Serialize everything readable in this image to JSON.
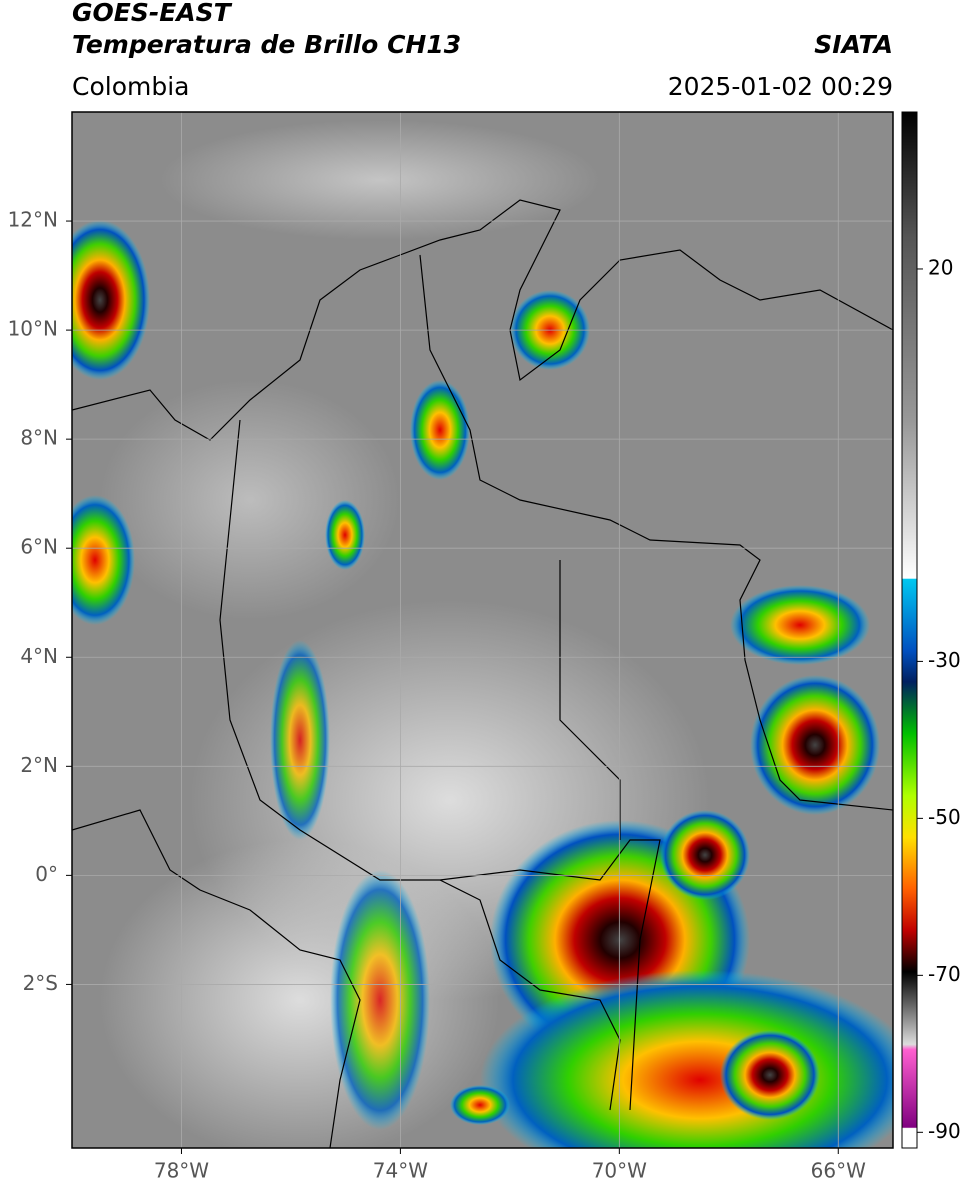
{
  "header": {
    "title": "GOES-EAST",
    "subtitle": "Temperatura de Brillo CH13",
    "source": "SIATA",
    "region": "Colombia",
    "datetime": "2025-01-02 00:29"
  },
  "map": {
    "xlim": [
      -80,
      -65
    ],
    "ylim": [
      -5,
      14
    ],
    "xticks": [
      {
        "value": -78,
        "label": "78°W"
      },
      {
        "value": -74,
        "label": "74°W"
      },
      {
        "value": -70,
        "label": "70°W"
      },
      {
        "value": -66,
        "label": "66°W"
      }
    ],
    "yticks": [
      {
        "value": 12,
        "label": "12°N"
      },
      {
        "value": 10,
        "label": "10°N"
      },
      {
        "value": 8,
        "label": "8°N"
      },
      {
        "value": 6,
        "label": "6°N"
      },
      {
        "value": 4,
        "label": "4°N"
      },
      {
        "value": 2,
        "label": "2°N"
      },
      {
        "value": 0,
        "label": "0°"
      },
      {
        "value": -2,
        "label": "2°S"
      }
    ],
    "grid": true
  },
  "colorbar": {
    "lim": [
      -92,
      40
    ],
    "ticks": [
      20,
      -30,
      -50,
      -70,
      -90
    ]
  }
}
